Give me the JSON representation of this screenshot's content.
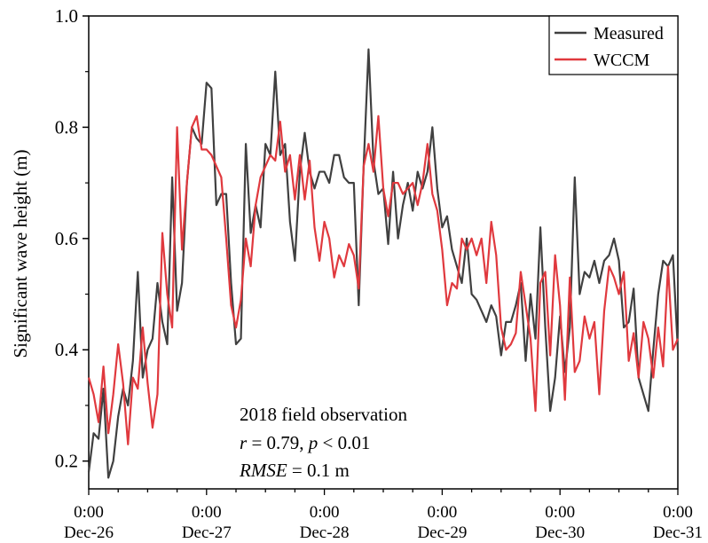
{
  "chart_data": {
    "type": "line",
    "title": "",
    "ylabel": "Significant wave height (m)",
    "xlabel": "",
    "ylim": [
      0.15,
      1.0
    ],
    "xlim": [
      "2018-12-26T00:00",
      "2018-12-31T00:00"
    ],
    "yticks": [
      "0.2",
      "0.4",
      "0.6",
      "0.8",
      "1.0"
    ],
    "yticks_values": [
      0.2,
      0.4,
      0.6,
      0.8,
      1.0
    ],
    "xticks": [
      {
        "time": "0:00",
        "date": "Dec-26"
      },
      {
        "time": "0:00",
        "date": "Dec-27"
      },
      {
        "time": "0:00",
        "date": "Dec-28"
      },
      {
        "time": "0:00",
        "date": "Dec-29"
      },
      {
        "time": "0:00",
        "date": "Dec-30"
      },
      {
        "time": "0:00",
        "date": "Dec-31"
      }
    ],
    "grid": false,
    "legend_position": "top-right",
    "annotation": {
      "line1": "2018 field observation",
      "line2_r_symbol": "r",
      "line2_r_value": " = 0.79, ",
      "line2_p_symbol": "p",
      "line2_p_value": " < 0.01",
      "line3_symbol": "RMSE",
      "line3_value": " = 0.1 m"
    },
    "series": [
      {
        "name": "Measured",
        "color": "#404040",
        "x_hours": [
          0,
          1,
          2,
          3,
          4,
          5,
          6,
          7,
          8,
          9,
          10,
          11,
          12,
          13,
          14,
          15,
          16,
          17,
          18,
          19,
          20,
          21,
          22,
          23,
          24,
          25,
          26,
          27,
          28,
          29,
          30,
          31,
          32,
          33,
          34,
          35,
          36,
          37,
          38,
          39,
          40,
          41,
          42,
          43,
          44,
          45,
          46,
          47,
          48,
          49,
          50,
          51,
          52,
          53,
          54,
          55,
          56,
          57,
          58,
          59,
          60,
          61,
          62,
          63,
          64,
          65,
          66,
          67,
          68,
          69,
          70,
          71,
          72,
          73,
          74,
          75,
          76,
          77,
          78,
          79,
          80,
          81,
          82,
          83,
          84,
          85,
          86,
          87,
          88,
          89,
          90,
          91,
          92,
          93,
          94,
          95,
          96,
          97,
          98,
          99,
          100,
          101,
          102,
          103,
          104,
          105,
          106,
          107,
          108,
          109,
          110,
          111,
          112,
          113,
          114,
          115,
          116,
          117,
          118,
          119,
          120
        ],
        "values": [
          0.18,
          0.25,
          0.24,
          0.33,
          0.17,
          0.2,
          0.28,
          0.33,
          0.3,
          0.38,
          0.54,
          0.35,
          0.4,
          0.42,
          0.52,
          0.45,
          0.41,
          0.71,
          0.47,
          0.52,
          0.7,
          0.8,
          0.78,
          0.77,
          0.88,
          0.87,
          0.66,
          0.68,
          0.68,
          0.52,
          0.41,
          0.42,
          0.77,
          0.61,
          0.66,
          0.62,
          0.77,
          0.75,
          0.9,
          0.75,
          0.77,
          0.63,
          0.56,
          0.72,
          0.79,
          0.72,
          0.69,
          0.72,
          0.72,
          0.7,
          0.75,
          0.75,
          0.71,
          0.7,
          0.7,
          0.48,
          0.73,
          0.94,
          0.74,
          0.68,
          0.69,
          0.59,
          0.72,
          0.6,
          0.66,
          0.7,
          0.65,
          0.72,
          0.69,
          0.72,
          0.8,
          0.69,
          0.62,
          0.64,
          0.58,
          0.55,
          0.52,
          0.6,
          0.5,
          0.49,
          0.47,
          0.45,
          0.48,
          0.46,
          0.39,
          0.45,
          0.45,
          0.48,
          0.52,
          0.38,
          0.5,
          0.42,
          0.62,
          0.44,
          0.29,
          0.35,
          0.46,
          0.36,
          0.44,
          0.71,
          0.5,
          0.54,
          0.53,
          0.56,
          0.52,
          0.56,
          0.57,
          0.6,
          0.56,
          0.44,
          0.45,
          0.51,
          0.35,
          0.32,
          0.29,
          0.4,
          0.5,
          0.56,
          0.55,
          0.57,
          0.4
        ]
      },
      {
        "name": "WCCM",
        "color": "#e0393e",
        "x_hours": [
          0,
          1,
          2,
          3,
          4,
          5,
          6,
          7,
          8,
          9,
          10,
          11,
          12,
          13,
          14,
          15,
          16,
          17,
          18,
          19,
          20,
          21,
          22,
          23,
          24,
          25,
          26,
          27,
          28,
          29,
          30,
          31,
          32,
          33,
          34,
          35,
          36,
          37,
          38,
          39,
          40,
          41,
          42,
          43,
          44,
          45,
          46,
          47,
          48,
          49,
          50,
          51,
          52,
          53,
          54,
          55,
          56,
          57,
          58,
          59,
          60,
          61,
          62,
          63,
          64,
          65,
          66,
          67,
          68,
          69,
          70,
          71,
          72,
          73,
          74,
          75,
          76,
          77,
          78,
          79,
          80,
          81,
          82,
          83,
          84,
          85,
          86,
          87,
          88,
          89,
          90,
          91,
          92,
          93,
          94,
          95,
          96,
          97,
          98,
          99,
          100,
          101,
          102,
          103,
          104,
          105,
          106,
          107,
          108,
          109,
          110,
          111,
          112,
          113,
          114,
          115,
          116,
          117,
          118,
          119,
          120
        ],
        "values": [
          0.35,
          0.32,
          0.27,
          0.37,
          0.25,
          0.32,
          0.41,
          0.34,
          0.23,
          0.35,
          0.33,
          0.44,
          0.34,
          0.26,
          0.32,
          0.61,
          0.5,
          0.44,
          0.8,
          0.58,
          0.7,
          0.8,
          0.82,
          0.76,
          0.76,
          0.75,
          0.73,
          0.71,
          0.6,
          0.48,
          0.44,
          0.49,
          0.6,
          0.55,
          0.66,
          0.71,
          0.73,
          0.75,
          0.74,
          0.81,
          0.72,
          0.75,
          0.67,
          0.75,
          0.67,
          0.74,
          0.62,
          0.56,
          0.63,
          0.6,
          0.53,
          0.57,
          0.55,
          0.59,
          0.57,
          0.51,
          0.73,
          0.77,
          0.72,
          0.82,
          0.69,
          0.64,
          0.7,
          0.7,
          0.68,
          0.69,
          0.7,
          0.66,
          0.7,
          0.77,
          0.68,
          0.65,
          0.58,
          0.48,
          0.52,
          0.51,
          0.6,
          0.58,
          0.6,
          0.57,
          0.6,
          0.52,
          0.63,
          0.57,
          0.44,
          0.4,
          0.41,
          0.43,
          0.54,
          0.48,
          0.42,
          0.29,
          0.52,
          0.54,
          0.39,
          0.57,
          0.48,
          0.31,
          0.53,
          0.36,
          0.38,
          0.46,
          0.42,
          0.45,
          0.32,
          0.47,
          0.55,
          0.53,
          0.5,
          0.54,
          0.38,
          0.43,
          0.35,
          0.45,
          0.42,
          0.35,
          0.44,
          0.37,
          0.55,
          0.4,
          0.42
        ]
      }
    ]
  }
}
